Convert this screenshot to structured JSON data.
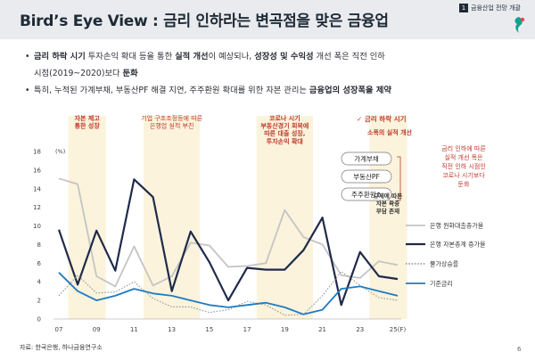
{
  "header": {
    "title": "Bird’s Eye View : 금리 인하라는 변곡점을 맞은 금융업",
    "section_num": "1",
    "section_label": "금융산업 전망 개괄"
  },
  "bullets": [
    [
      {
        "t": "금리 하락 시기",
        "b": true
      },
      {
        "t": " 투자손익 확대 등을 통한 ",
        "b": false
      },
      {
        "t": "실적 개선",
        "b": true
      },
      {
        "t": "이 예상되나, ",
        "b": false
      },
      {
        "t": "성장성 및 수익성",
        "b": true
      },
      {
        "t": " 개선 폭은 직전 인하",
        "b": false
      }
    ],
    [
      {
        "t": "시점(2019~2020)보다 ",
        "b": false
      },
      {
        "t": "둔화",
        "b": true
      }
    ],
    [
      {
        "t": "특히, 누적된 가계부채, 부동산PF 해결 지연, 주주환원 확대를 위한 자본 관리는 ",
        "b": false
      },
      {
        "t": "금융업의 성장폭을 제약",
        "b": true
      }
    ]
  ],
  "chart_data": {
    "type": "line",
    "x": [
      "07",
      "08",
      "09",
      "10",
      "11",
      "12",
      "13",
      "14",
      "15",
      "16",
      "17",
      "18",
      "19",
      "20",
      "21",
      "22",
      "23",
      "24",
      "25(F)"
    ],
    "x_tick_labels": [
      "07",
      "09",
      "11",
      "13",
      "15",
      "17",
      "19",
      "21",
      "23",
      "25(F)"
    ],
    "y_unit": "(%)",
    "ylim": [
      0,
      18
    ],
    "y_ticks": [
      0,
      2,
      4,
      6,
      8,
      10,
      12,
      14,
      16,
      18
    ],
    "series": [
      {
        "name": "은행 원화대출총가율",
        "color": "#c4c4c4",
        "dash": "solid",
        "values": [
          15.1,
          14.5,
          4.6,
          3.5,
          7.8,
          3.6,
          4.6,
          8.2,
          7.9,
          5.6,
          5.7,
          6.0,
          11.7,
          8.8,
          8.0,
          4.7,
          4.4,
          6.2,
          5.8
        ]
      },
      {
        "name": "은행 자본총계 증가율",
        "color": "#1f2a4a",
        "dash": "solid",
        "values": [
          9.6,
          3.7,
          9.5,
          5.2,
          15.0,
          13.1,
          3.0,
          9.4,
          6.1,
          2.0,
          5.5,
          5.3,
          5.3,
          7.4,
          10.9,
          1.5,
          7.2,
          4.6,
          4.3
        ]
      },
      {
        "name": "물가상승률",
        "color": "#9a9a9a",
        "dash": "dotted",
        "values": [
          2.5,
          4.7,
          2.8,
          2.9,
          4.0,
          2.2,
          1.3,
          1.3,
          0.7,
          1.0,
          1.9,
          1.5,
          0.4,
          0.5,
          2.5,
          5.1,
          3.6,
          2.3,
          2.0
        ]
      },
      {
        "name": "기준금리",
        "color": "#1f7bc1",
        "dash": "solid",
        "values": [
          5.0,
          3.0,
          2.0,
          2.5,
          3.25,
          2.75,
          2.5,
          2.0,
          1.5,
          1.25,
          1.5,
          1.75,
          1.25,
          0.5,
          1.0,
          3.25,
          3.5,
          3.0,
          2.5
        ]
      }
    ],
    "highlight_periods": [
      {
        "from": "08",
        "to": "09",
        "label": [
          "자본 제고",
          "통한 성장"
        ],
        "color": "#c0392b"
      },
      {
        "from": "12",
        "to": "14",
        "label": [
          "기업 구조조정등에 따른",
          "은행업 실적 부진"
        ],
        "color": "#c0392b",
        "light": true
      },
      {
        "from": "18",
        "to": "20",
        "label": [
          "코로나 시기",
          "부동산경기 회복에",
          "따른 대출 성장,",
          "투자손익 확대"
        ],
        "color": "#c0392b"
      },
      {
        "from": "24",
        "to": "25(F)",
        "label": [],
        "color": "#c0392b"
      }
    ],
    "annotations": {
      "rate_cut": {
        "title": "✓ 금리 하락 시기",
        "subtitle": "소폭의 실적 개선"
      },
      "pills": [
        "가계부채",
        "부동산PF",
        "주주환원↑"
      ],
      "side_note": [
        "금리 인하에 따른",
        "실적 개선 폭은",
        "직전 인하 시점인",
        "코로나 시기보다",
        "둔화"
      ],
      "regulation": [
        "규제에 따른",
        "자본 확충",
        "부담 존재"
      ]
    }
  },
  "footer": {
    "source": "자료: 한국은행, 하나금융연구소",
    "page": "6"
  }
}
